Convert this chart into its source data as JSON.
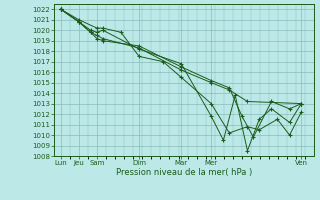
{
  "background_color": "#bde8e8",
  "grid_color": "#88bbbb",
  "line_color": "#1a5c1a",
  "marker_color": "#1a5c1a",
  "xlabel": "Pression niveau de la mer( hPa )",
  "ylim": [
    1008,
    1022.5
  ],
  "ytick_min": 1008,
  "ytick_max": 1022,
  "xtick_labels": [
    "Lun",
    "Jeu",
    "Sam",
    "Dim",
    "Mar",
    "Mer",
    "Ven"
  ],
  "xtick_positions": [
    0,
    0.43,
    0.86,
    1.86,
    2.86,
    3.57,
    5.71
  ],
  "xlim": [
    -0.15,
    6.0
  ],
  "series": [
    {
      "x": [
        0.0,
        0.43,
        0.71,
        0.86,
        1.0,
        1.86,
        2.86,
        3.57,
        4.0,
        4.43,
        5.71
      ],
      "y": [
        1022.0,
        1020.8,
        1019.8,
        1019.5,
        1019.2,
        1018.3,
        1016.2,
        1015.0,
        1014.3,
        1013.2,
        1013.0
      ]
    },
    {
      "x": [
        0.0,
        0.43,
        0.71,
        0.86,
        1.0,
        1.86,
        2.86,
        3.57,
        4.0,
        4.3,
        4.57,
        5.0,
        5.43,
        5.71
      ],
      "y": [
        1022.0,
        1020.8,
        1019.8,
        1019.2,
        1019.0,
        1018.5,
        1016.5,
        1015.2,
        1014.5,
        1011.8,
        1009.8,
        1013.2,
        1012.5,
        1013.0
      ]
    },
    {
      "x": [
        0.0,
        0.43,
        0.71,
        0.86,
        1.0,
        1.86,
        2.86,
        3.57,
        3.86,
        4.14,
        4.43,
        4.71,
        5.0,
        5.43,
        5.71
      ],
      "y": [
        1022.0,
        1020.8,
        1020.0,
        1019.8,
        1020.0,
        1018.2,
        1016.8,
        1011.8,
        1009.5,
        1013.8,
        1008.5,
        1011.5,
        1012.5,
        1011.2,
        1013.0
      ]
    },
    {
      "x": [
        0.0,
        0.43,
        0.86,
        1.0,
        1.43,
        1.86,
        2.43,
        2.86,
        3.57,
        4.0,
        4.43,
        4.71,
        5.14,
        5.43,
        5.71
      ],
      "y": [
        1022.0,
        1021.0,
        1020.2,
        1020.2,
        1019.8,
        1017.5,
        1017.0,
        1015.5,
        1013.0,
        1010.2,
        1010.8,
        1010.5,
        1011.5,
        1010.0,
        1012.2
      ]
    }
  ]
}
